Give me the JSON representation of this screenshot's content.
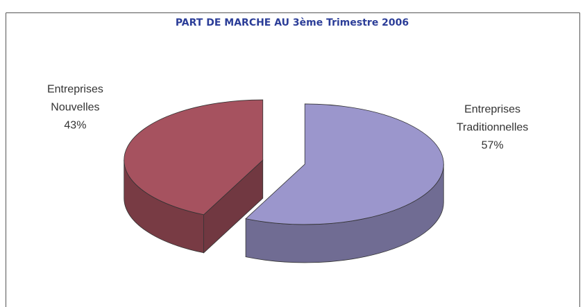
{
  "chart_data": {
    "type": "pie3d",
    "title": "PART DE MARCHE AU 3ème Trimestre 2006",
    "categories": [
      "Entreprises Traditionnelles",
      "Entreprises Nouvelles"
    ],
    "values": [
      57,
      43
    ],
    "value_labels": [
      "57%",
      "43%"
    ],
    "colors": [
      "#9b96cc",
      "#a6525f"
    ],
    "start_angle": 0,
    "exploded": true
  }
}
